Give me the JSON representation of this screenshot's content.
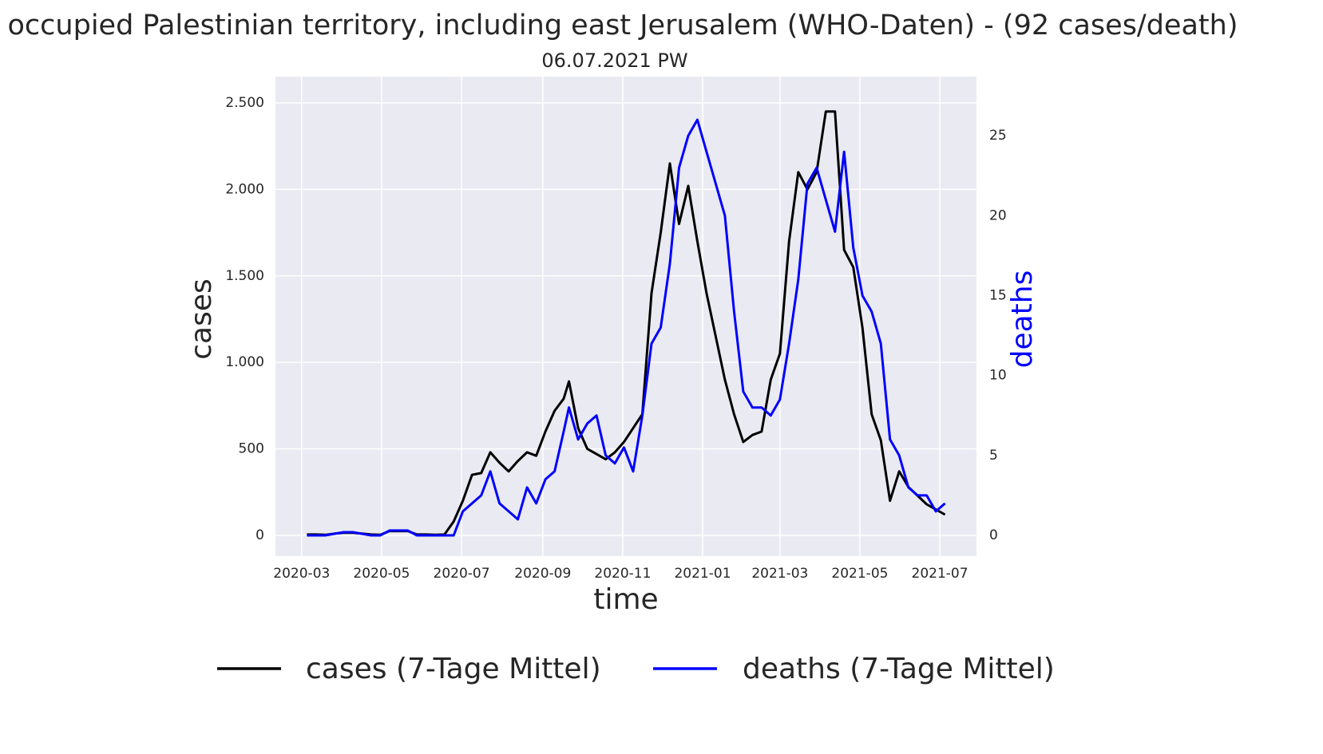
{
  "chart_data": {
    "type": "line",
    "title": "occupied Palestinian territory, including east Jerusalem (WHO-Daten) - (92 cases/death)",
    "subtitle": "06.07.2021 PW",
    "xlabel": "time",
    "ylabel": "cases",
    "y2label": "deaths",
    "x": [
      "2020-03-05",
      "2020-03-12",
      "2020-03-19",
      "2020-03-26",
      "2020-04-02",
      "2020-04-09",
      "2020-04-16",
      "2020-04-23",
      "2020-04-30",
      "2020-05-07",
      "2020-05-14",
      "2020-05-21",
      "2020-05-28",
      "2020-06-04",
      "2020-06-11",
      "2020-06-18",
      "2020-06-25",
      "2020-07-02",
      "2020-07-09",
      "2020-07-16",
      "2020-07-23",
      "2020-07-30",
      "2020-08-06",
      "2020-08-13",
      "2020-08-20",
      "2020-08-27",
      "2020-09-03",
      "2020-09-10",
      "2020-09-17",
      "2020-09-21",
      "2020-09-28",
      "2020-10-05",
      "2020-10-12",
      "2020-10-19",
      "2020-10-26",
      "2020-11-02",
      "2020-11-09",
      "2020-11-16",
      "2020-11-23",
      "2020-11-30",
      "2020-12-07",
      "2020-12-14",
      "2020-12-21",
      "2020-12-28",
      "2021-01-04",
      "2021-01-11",
      "2021-01-18",
      "2021-01-25",
      "2021-02-01",
      "2021-02-08",
      "2021-02-15",
      "2021-02-22",
      "2021-03-01",
      "2021-03-08",
      "2021-03-15",
      "2021-03-22",
      "2021-03-29",
      "2021-04-05",
      "2021-04-12",
      "2021-04-19",
      "2021-04-26",
      "2021-05-03",
      "2021-05-10",
      "2021-05-17",
      "2021-05-24",
      "2021-05-31",
      "2021-06-07",
      "2021-06-14",
      "2021-06-21",
      "2021-06-28",
      "2021-07-05"
    ],
    "series": [
      {
        "name": "cases (7-Tage Mittel)",
        "color": "#000000",
        "values": [
          5,
          5,
          3,
          10,
          15,
          15,
          10,
          5,
          3,
          25,
          25,
          25,
          5,
          5,
          3,
          5,
          80,
          200,
          350,
          360,
          480,
          420,
          370,
          430,
          480,
          460,
          600,
          720,
          790,
          890,
          620,
          500,
          470,
          440,
          480,
          540,
          620,
          700,
          1400,
          1750,
          2150,
          1800,
          2020,
          1700,
          1400,
          1150,
          900,
          700,
          540,
          580,
          600,
          900,
          1050,
          1700,
          2100,
          2000,
          2100,
          2450,
          2450,
          1650,
          1550,
          1200,
          700,
          550,
          200,
          370,
          280,
          230,
          180,
          150,
          120
        ]
      },
      {
        "name": "deaths (7-Tage Mittel)",
        "color": "#0000ff",
        "axis": "y2",
        "values": [
          0,
          0,
          0,
          0.1,
          0.2,
          0.2,
          0.1,
          0,
          0,
          0.3,
          0.3,
          0.3,
          0,
          0,
          0,
          0,
          0,
          1.5,
          2,
          2.5,
          4,
          2,
          1.5,
          1,
          3,
          2,
          3.5,
          4,
          6.5,
          8,
          6,
          7,
          7.5,
          5,
          4.5,
          5.5,
          4,
          7.5,
          12,
          13,
          17,
          23,
          25,
          26,
          24,
          22,
          20,
          14,
          9,
          8,
          8,
          7.5,
          8.5,
          12,
          16,
          22,
          23,
          21,
          19,
          24,
          18,
          15,
          14,
          12,
          6,
          5,
          3,
          2.5,
          2.5,
          1.5,
          2
        ]
      }
    ],
    "xlim": [
      "2020-02-10",
      "2021-07-29"
    ],
    "ylim": [
      -120,
      2652
    ],
    "y2lim": [
      -1.3,
      28.7
    ],
    "xticks": [
      {
        "value": "2020-03-01",
        "label": "2020-03"
      },
      {
        "value": "2020-05-01",
        "label": "2020-05"
      },
      {
        "value": "2020-07-01",
        "label": "2020-07"
      },
      {
        "value": "2020-09-01",
        "label": "2020-09"
      },
      {
        "value": "2020-11-01",
        "label": "2020-11"
      },
      {
        "value": "2021-01-01",
        "label": "2021-01"
      },
      {
        "value": "2021-03-01",
        "label": "2021-03"
      },
      {
        "value": "2021-05-01",
        "label": "2021-05"
      },
      {
        "value": "2021-07-01",
        "label": "2021-07"
      }
    ],
    "yticks": [
      0,
      500,
      {
        "value": 1000,
        "label": "1.000"
      },
      {
        "value": 1500,
        "label": "1.500"
      },
      {
        "value": 2000,
        "label": "2.000"
      },
      {
        "value": 2500,
        "label": "2.500"
      }
    ],
    "y2ticks": [
      0,
      5,
      10,
      15,
      20,
      25
    ],
    "grid": true,
    "legend": "bottom"
  }
}
